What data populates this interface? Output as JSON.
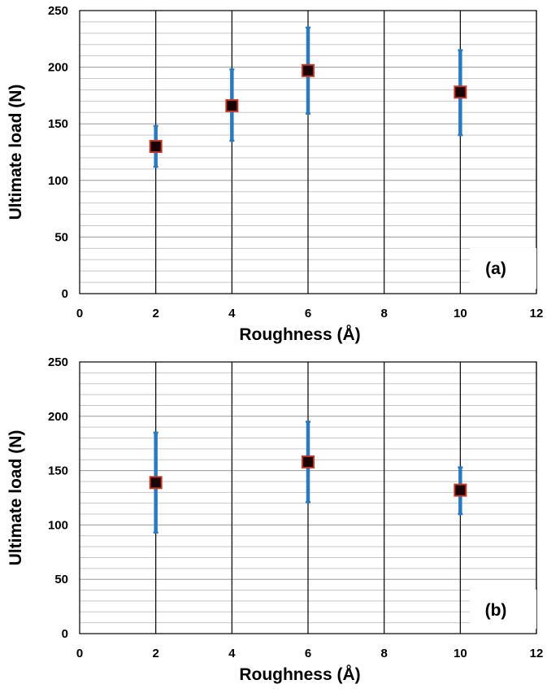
{
  "chart_data": [
    {
      "type": "scatter",
      "panel": "(a)",
      "xlabel": "Roughness (Å)",
      "ylabel": "Ultimate load (N)",
      "xlim": [
        0,
        12
      ],
      "ylim": [
        0,
        250
      ],
      "x_ticks": [
        "0",
        "2",
        "4",
        "6",
        "8",
        "10",
        "12"
      ],
      "y_ticks": [
        "0",
        "50",
        "100",
        "150",
        "200",
        "250"
      ],
      "grid": "on",
      "fit": "polynomial trend curve",
      "points": [
        {
          "x": 2,
          "y": 130,
          "err_low": 112,
          "err_high": 148
        },
        {
          "x": 4,
          "y": 166,
          "err_low": 135,
          "err_high": 198
        },
        {
          "x": 6,
          "y": 197,
          "err_low": 159,
          "err_high": 235
        },
        {
          "x": 10,
          "y": 178,
          "err_low": 140,
          "err_high": 215
        }
      ],
      "colors": {
        "marker_fill": "#1a0000",
        "marker_edge": "#c0392b",
        "error_bar": "#2a7abf",
        "trend": "#000000"
      }
    },
    {
      "type": "scatter",
      "panel": "(b)",
      "xlabel": "Roughness (Å)",
      "ylabel": "Ultimate load (N)",
      "xlim": [
        0,
        12
      ],
      "ylim": [
        0,
        250
      ],
      "x_ticks": [
        "0",
        "2",
        "4",
        "6",
        "8",
        "10",
        "12"
      ],
      "y_ticks": [
        "0",
        "50",
        "100",
        "150",
        "200",
        "250"
      ],
      "grid": "on",
      "fit": "polynomial trend curve",
      "points": [
        {
          "x": 2,
          "y": 139,
          "err_low": 93,
          "err_high": 185
        },
        {
          "x": 6,
          "y": 158,
          "err_low": 121,
          "err_high": 195
        },
        {
          "x": 10,
          "y": 132,
          "err_low": 110,
          "err_high": 153
        }
      ],
      "colors": {
        "marker_fill": "#1a0000",
        "marker_edge": "#c0392b",
        "error_bar": "#2a7abf",
        "trend": "#000000"
      }
    }
  ]
}
